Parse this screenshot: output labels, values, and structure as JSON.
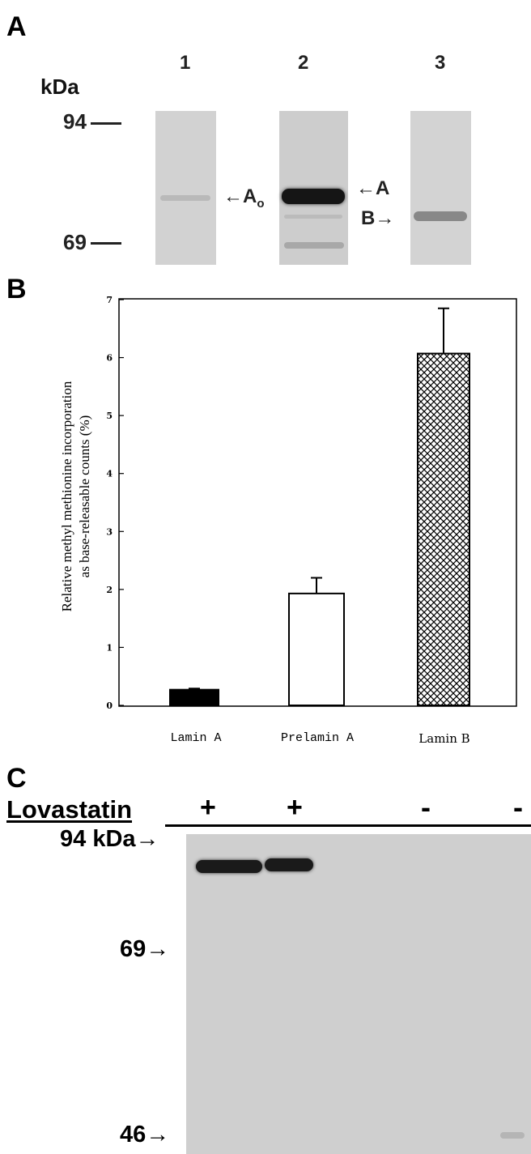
{
  "panels": {
    "a": {
      "label": "A",
      "unit_label": "kDa",
      "lanes": [
        "1",
        "2",
        "3"
      ],
      "markers": [
        "94",
        "69"
      ],
      "band_labels": {
        "a0_arrow": "←A",
        "a0_sub": "o",
        "a": "←A",
        "b": "B→"
      }
    },
    "b": {
      "label": "B"
    },
    "c": {
      "label": "C",
      "row_label": "Lovastatin",
      "lane_signs": [
        "+",
        "+",
        "-",
        "-"
      ],
      "markers": [
        "94 kDa→",
        "69→",
        "46→"
      ]
    }
  },
  "chart_data": {
    "type": "bar",
    "categories": [
      "Lamin A",
      "Prelamin A",
      "Lamin B"
    ],
    "values": [
      0.27,
      1.93,
      6.07
    ],
    "errors": [
      0.02,
      0.27,
      0.78
    ],
    "ylabel": "Relative methyl methionine incorporation as base-releasable counts (%)",
    "ylabel_lines": [
      "Relative methyl methionine incorporation",
      "as base-releasable counts (%)"
    ],
    "ylim": [
      0,
      7
    ],
    "yticks": [
      "0",
      "1",
      "2",
      "3",
      "4",
      "5",
      "6",
      "7"
    ],
    "fills": [
      "solid-black",
      "white",
      "crosshatch"
    ],
    "grid": false
  }
}
